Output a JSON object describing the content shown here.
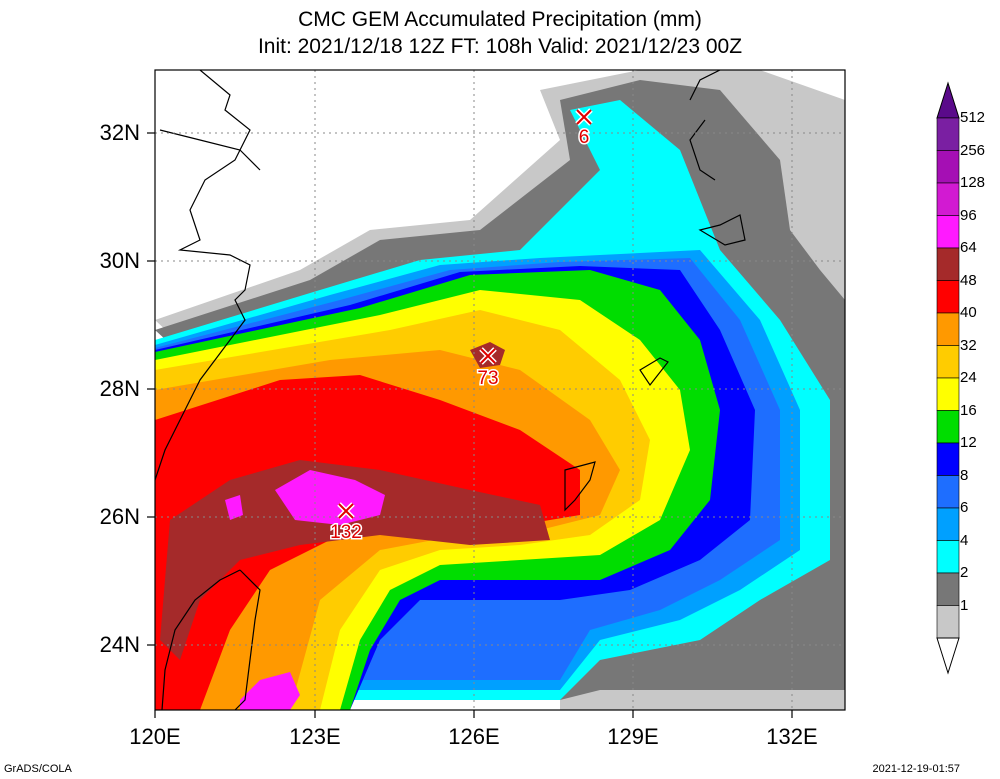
{
  "title": {
    "line1": "CMC GEM Accumulated Precipitation (mm)",
    "line2": "Init: 2021/12/18 12Z  FT: 108h  Valid: 2021/12/23 00Z"
  },
  "axes": {
    "lat_labels": [
      "32N",
      "30N",
      "28N",
      "26N",
      "24N"
    ],
    "lon_labels": [
      "120E",
      "123E",
      "126E",
      "129E",
      "132E"
    ]
  },
  "colorbar": {
    "levels": [
      "512",
      "256",
      "128",
      "96",
      "64",
      "48",
      "40",
      "32",
      "24",
      "16",
      "12",
      "8",
      "6",
      "4",
      "2",
      "1"
    ],
    "colors": [
      "#7a1fa2",
      "#a50fb4",
      "#d21ad2",
      "#ff1aff",
      "#a52a2a",
      "#ff0000",
      "#ff9900",
      "#ffcc00",
      "#ffff00",
      "#00dd00",
      "#0000ff",
      "#1e6eff",
      "#00a0ff",
      "#00ffff",
      "#777777",
      "#c8c8c8"
    ]
  },
  "markers": [
    {
      "label": "6"
    },
    {
      "label": "73"
    },
    {
      "label": "132"
    }
  ],
  "footer": {
    "left": "GrADS/COLA",
    "right": "2021-12-19-01:57"
  }
}
